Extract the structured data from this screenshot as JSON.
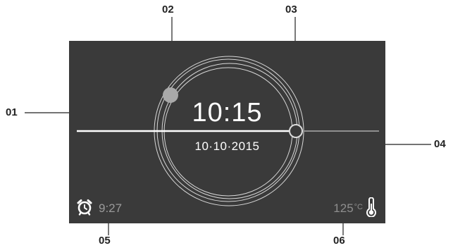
{
  "screen": {
    "time": "10:15",
    "date": "10·10·2015",
    "alarm": {
      "icon": "alarm-clock-icon",
      "time": "9:27"
    },
    "temperature": {
      "value": "125",
      "unit": "°C",
      "icon": "thermometer-icon"
    },
    "colors": {
      "screen_bg": "#3a3a3a",
      "text_primary": "#ffffff",
      "text_secondary": "#9a9a9a"
    }
  },
  "callouts": {
    "c01": "01",
    "c02": "02",
    "c03": "03",
    "c04": "04",
    "c05": "05",
    "c06": "06"
  }
}
